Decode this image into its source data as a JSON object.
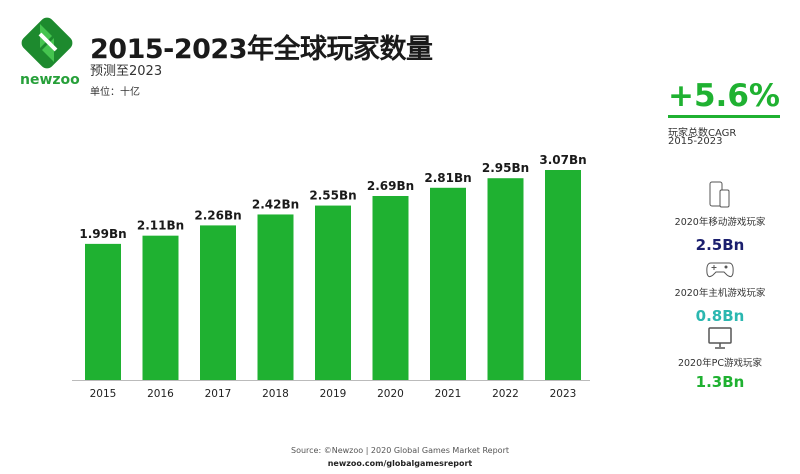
{
  "logo": {
    "text": "newzoo"
  },
  "header": {
    "title": "2015-2023年全球玩家数量",
    "subtitle": "预测至2023",
    "unit": "单位：十亿"
  },
  "cagr": {
    "value": "+5.6%",
    "label1": "玩家总数CAGR",
    "label2": "2015-2023"
  },
  "side": [
    {
      "icon": "mobile-icon",
      "label": "2020年移动游戏玩家",
      "value": "2.5Bn",
      "color": "#1b1f6e"
    },
    {
      "icon": "gamepad-icon",
      "label": "2020年主机游戏玩家",
      "value": "0.8Bn",
      "color": "#2bb7b0"
    },
    {
      "icon": "monitor-icon",
      "label": "2020年PC游戏玩家",
      "value": "1.3Bn",
      "color": "#1fb131"
    }
  ],
  "source": {
    "line1": "Source: ©Newzoo | 2020 Global Games Market Report",
    "line2": "newzoo.com/globalgamesreport"
  },
  "chart_data": {
    "type": "bar",
    "categories": [
      "2015",
      "2016",
      "2017",
      "2018",
      "2019",
      "2020",
      "2021",
      "2022",
      "2023"
    ],
    "values": [
      1.99,
      2.11,
      2.26,
      2.42,
      2.55,
      2.69,
      2.81,
      2.95,
      3.07
    ],
    "data_labels": [
      "1.99Bn",
      "2.11Bn",
      "2.26Bn",
      "2.42Bn",
      "2.55Bn",
      "2.69Bn",
      "2.81Bn",
      "2.95Bn",
      "3.07Bn"
    ],
    "ylim": [
      0,
      3.07
    ],
    "grid": false,
    "bar_color": "#1fb131"
  }
}
